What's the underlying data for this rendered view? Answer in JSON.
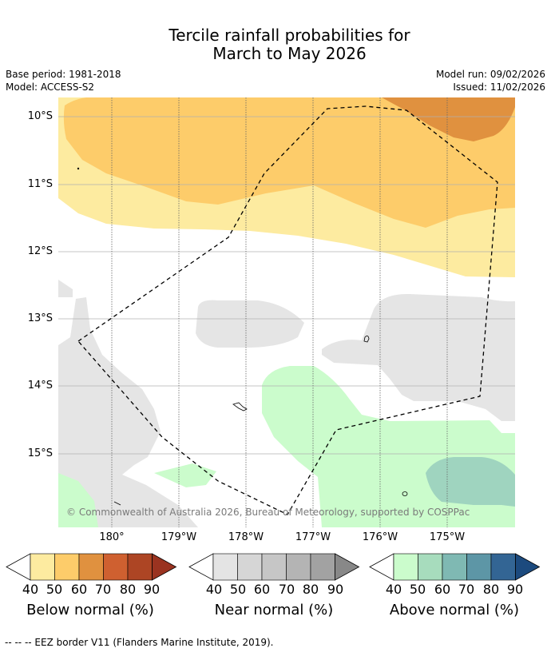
{
  "header": {
    "title_line1": "Tercile rainfall probabilities for",
    "title_line2": "March to May 2026",
    "base_period": "Base period: 1981-2018",
    "model": "Model: ACCESS-S2",
    "model_run": "Model run: 09/02/2026",
    "issued": "Issued: 11/02/2026"
  },
  "map": {
    "lat_labels": [
      "10°S",
      "11°S",
      "12°S",
      "13°S",
      "14°S",
      "15°S"
    ],
    "lon_labels": [
      "180°",
      "179°W",
      "178°W",
      "177°W",
      "176°W",
      "175°W"
    ],
    "copyright": "© Commonwealth of Australia 2026, Bureau of Meteorology, supported by COSPPac",
    "colors": {
      "below_40": "#fdeba0",
      "below_50": "#fdcc6a",
      "below_60": "#e0913f",
      "near_40": "#e5e5e5",
      "above_40": "#cbfccc",
      "above_50": "#9fd4bf"
    }
  },
  "colorbars": {
    "ticks": [
      "40",
      "50",
      "60",
      "70",
      "80",
      "90"
    ],
    "below": {
      "label": "Below normal (%)",
      "colors": [
        "#fdeba0",
        "#fdcc6a",
        "#e0913f",
        "#cf6030",
        "#ad4524",
        "#9a3320"
      ]
    },
    "near": {
      "label": "Near normal (%)",
      "colors": [
        "#e4e4e4",
        "#d6d6d6",
        "#c6c6c6",
        "#b4b4b4",
        "#a2a2a2",
        "#888888"
      ]
    },
    "above": {
      "label": "Above normal (%)",
      "colors": [
        "#cbfccc",
        "#a7dcbd",
        "#7fb9b3",
        "#5d96a6",
        "#336594",
        "#1c4a7e"
      ]
    }
  },
  "footnote": "--  --  -- EEZ border V11 (Flanders Marine Institute, 2019)."
}
